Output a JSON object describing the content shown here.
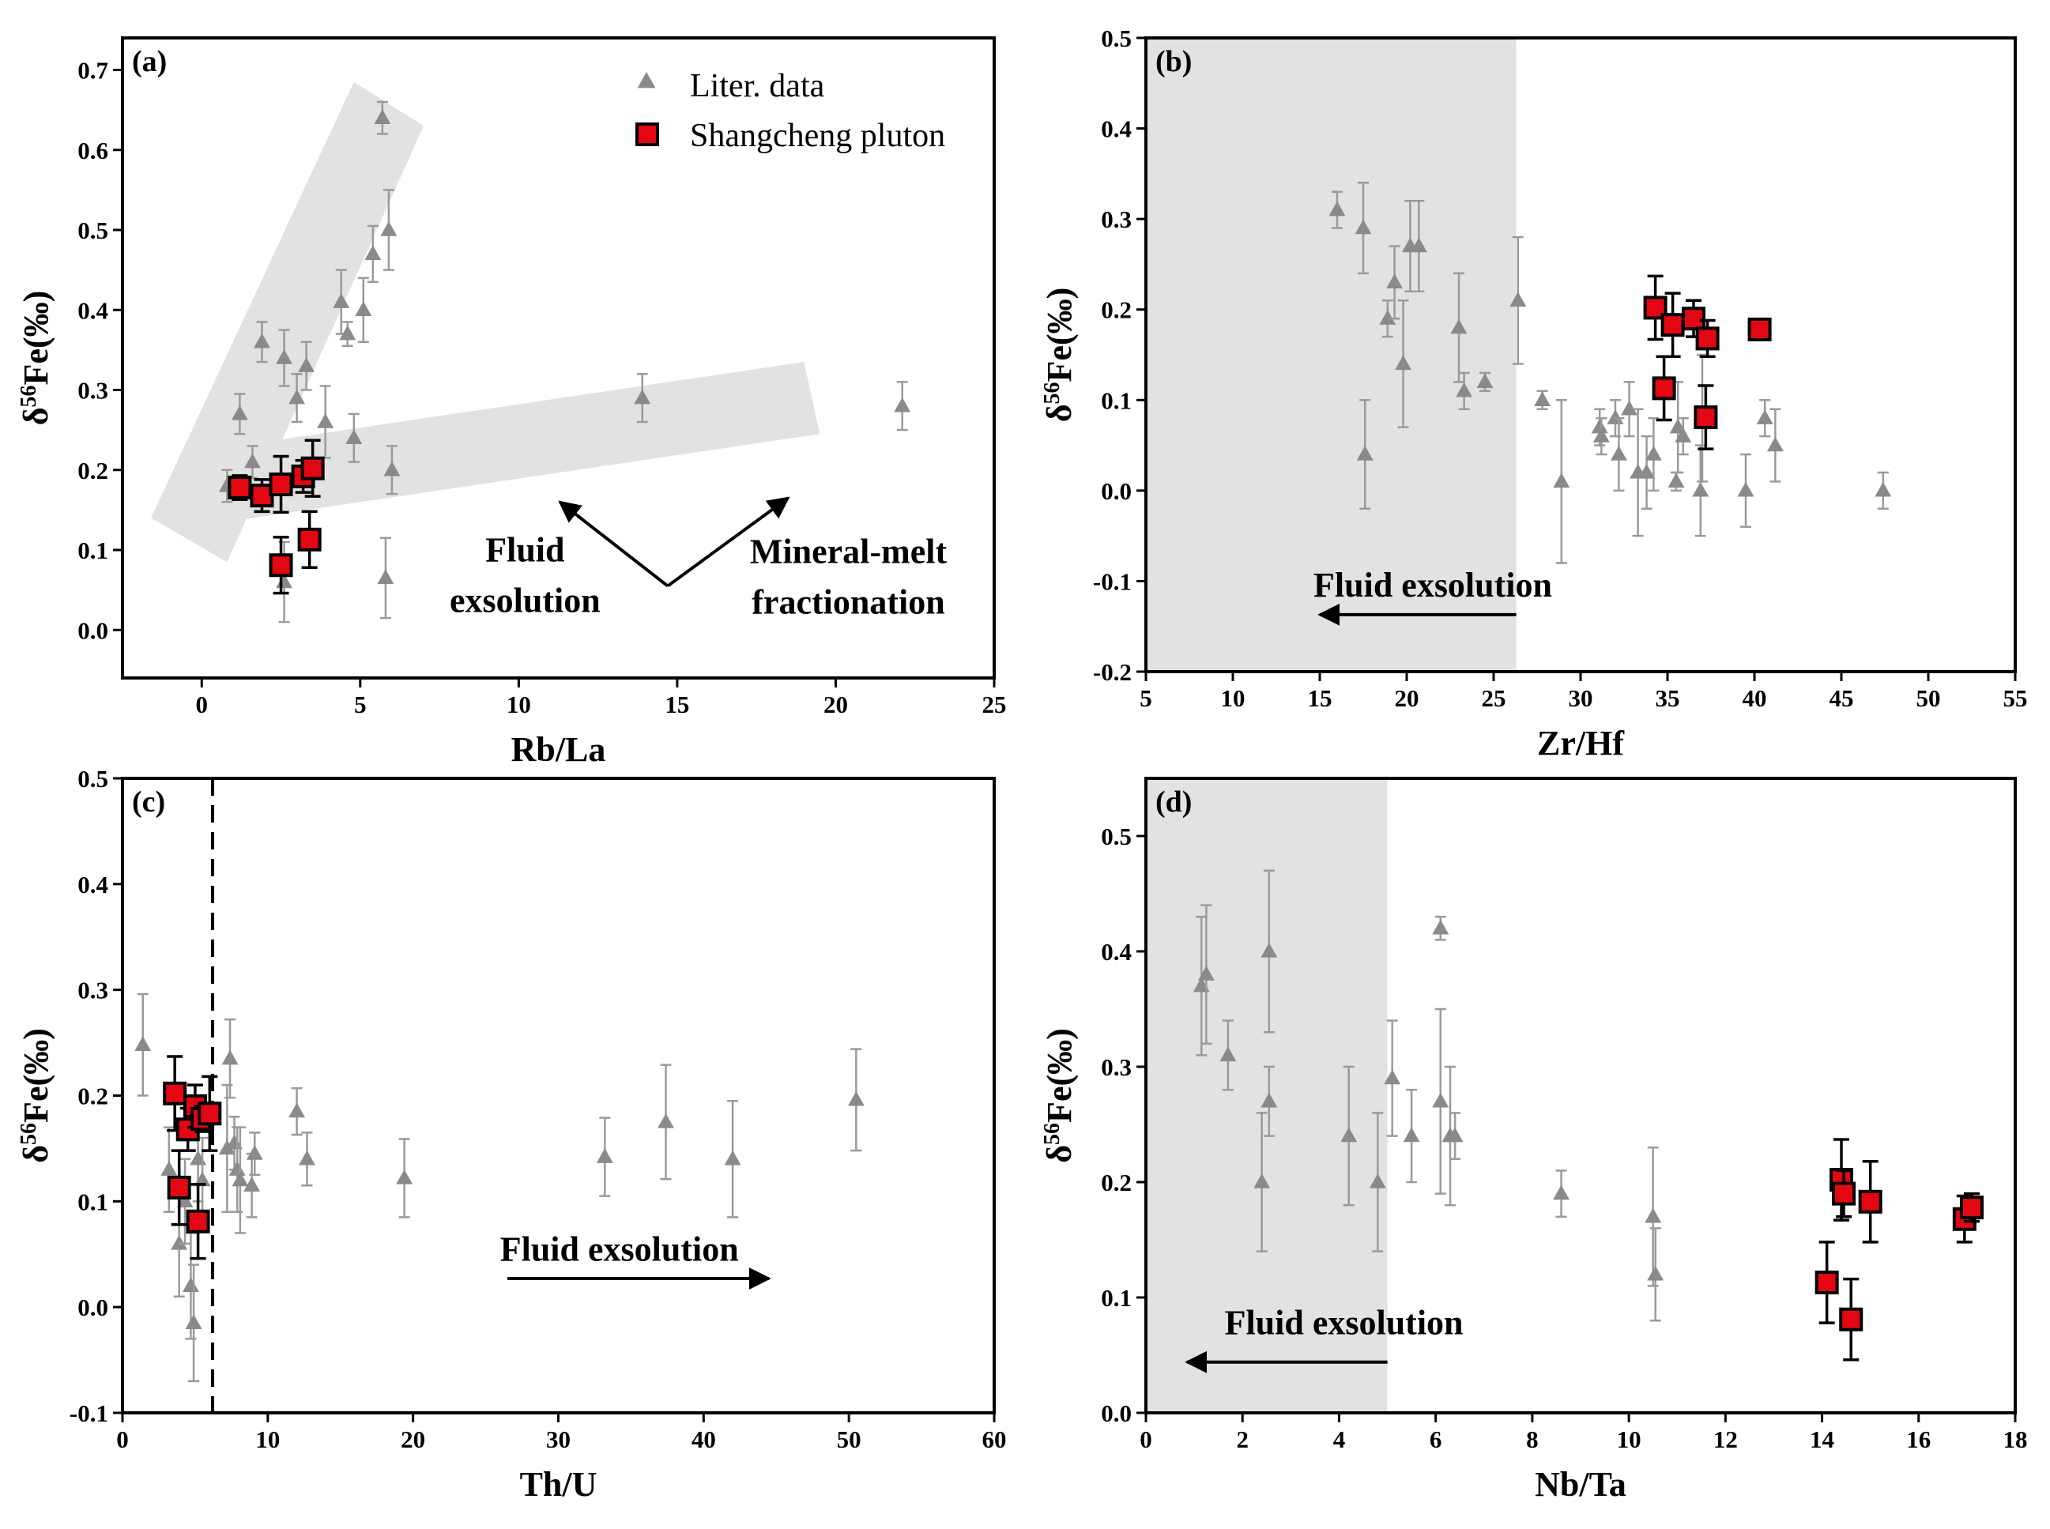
{
  "colors": {
    "literature": "#8a8a8a",
    "literature_error": "#9a9a9a",
    "shangcheng_fill": "#e30613",
    "shangcheng_edge": "#000000",
    "shade": "#e2e2e2"
  },
  "legend": {
    "literature_label": "Liter. data",
    "shangcheng_label": "Shangcheng pluton"
  },
  "chart_data": [
    {
      "panel": "(a)",
      "type": "scatter",
      "xlabel": "Rb/La",
      "ylabel": "δ56Fe(‰)",
      "xlim": [
        -2.5,
        25
      ],
      "ylim": [
        -0.06,
        0.74
      ],
      "xticks": [
        0,
        5,
        10,
        15,
        20,
        25
      ],
      "yticks": [
        0.0,
        0.1,
        0.2,
        0.3,
        0.4,
        0.5,
        0.6,
        0.7
      ],
      "legend_position": "top-right",
      "bands": [
        {
          "polygon": [
            [
              -1.6,
              0.14
            ],
            [
              4.8,
              0.685
            ],
            [
              7.0,
              0.63
            ],
            [
              0.8,
              0.085
            ]
          ]
        },
        {
          "polygon": [
            [
              -0.6,
              0.22
            ],
            [
              19.0,
              0.335
            ],
            [
              19.5,
              0.245
            ],
            [
              -0.1,
              0.13
            ]
          ]
        }
      ],
      "annotations": [
        {
          "lines": [
            "Fluid",
            "exsolution"
          ],
          "x": 10.2,
          "y": 0.054
        },
        {
          "lines": [
            "Mineral-melt",
            "fractionation"
          ],
          "x": 20.4,
          "y": 0.052
        }
      ],
      "arrows": [
        {
          "from": [
            14.7,
            0.055
          ],
          "to": [
            11.3,
            0.16
          ]
        },
        {
          "from": [
            14.7,
            0.055
          ],
          "to": [
            18.5,
            0.165
          ]
        }
      ],
      "series": [
        {
          "name": "Liter. data",
          "marker": "triangle",
          "points": [
            {
              "x": 0.8,
              "y": 0.18,
              "err": 0.02
            },
            {
              "x": 1.2,
              "y": 0.27,
              "err": 0.025
            },
            {
              "x": 1.6,
              "y": 0.21,
              "err": 0.02
            },
            {
              "x": 1.9,
              "y": 0.36,
              "err": 0.025
            },
            {
              "x": 2.6,
              "y": 0.34,
              "err": 0.035
            },
            {
              "x": 3.0,
              "y": 0.29,
              "err": 0.03
            },
            {
              "x": 3.3,
              "y": 0.33,
              "err": 0.03
            },
            {
              "x": 3.9,
              "y": 0.26,
              "err": 0.045
            },
            {
              "x": 4.4,
              "y": 0.41,
              "err": 0.04
            },
            {
              "x": 4.8,
              "y": 0.24,
              "err": 0.03
            },
            {
              "x": 4.6,
              "y": 0.37,
              "err": 0.015
            },
            {
              "x": 5.1,
              "y": 0.4,
              "err": 0.04
            },
            {
              "x": 5.4,
              "y": 0.47,
              "err": 0.035
            },
            {
              "x": 5.7,
              "y": 0.64,
              "err": 0.02
            },
            {
              "x": 5.9,
              "y": 0.5,
              "err": 0.05
            },
            {
              "x": 6.0,
              "y": 0.2,
              "err": 0.03
            },
            {
              "x": 5.8,
              "y": 0.065,
              "err": 0.05
            },
            {
              "x": 2.6,
              "y": 0.06,
              "err": 0.05
            },
            {
              "x": 13.9,
              "y": 0.29,
              "err": 0.03
            },
            {
              "x": 22.1,
              "y": 0.28,
              "err": 0.03
            }
          ]
        },
        {
          "name": "Shangcheng pluton",
          "marker": "square",
          "points": [
            {
              "x": 1.2,
              "y": 0.178,
              "err": 0.015
            },
            {
              "x": 1.9,
              "y": 0.168,
              "err": 0.02
            },
            {
              "x": 2.5,
              "y": 0.182,
              "err": 0.035
            },
            {
              "x": 3.2,
              "y": 0.192,
              "err": 0.02
            },
            {
              "x": 3.5,
              "y": 0.202,
              "err": 0.035
            },
            {
              "x": 3.4,
              "y": 0.113,
              "err": 0.035
            },
            {
              "x": 2.5,
              "y": 0.081,
              "err": 0.035
            }
          ]
        }
      ]
    },
    {
      "panel": "(b)",
      "type": "scatter",
      "xlabel": "Zr/Hf",
      "ylabel": "δ56Fe(‰)",
      "xlim": [
        5,
        55
      ],
      "ylim": [
        -0.2,
        0.5
      ],
      "xticks": [
        5,
        10,
        15,
        20,
        25,
        30,
        35,
        40,
        45,
        50,
        55
      ],
      "yticks": [
        -0.2,
        -0.1,
        0.0,
        0.1,
        0.2,
        0.3,
        0.4,
        0.5
      ],
      "shaded_x_range": [
        5,
        26.3
      ],
      "annotations": [
        {
          "lines": [
            "Fluid exsolution"
          ],
          "x": 21.5,
          "y": -0.117
        }
      ],
      "arrows": [
        {
          "from": [
            26.3,
            -0.137
          ],
          "to": [
            15.0,
            -0.137
          ]
        }
      ],
      "series": [
        {
          "name": "Liter. data",
          "marker": "triangle",
          "points": [
            {
              "x": 16.0,
              "y": 0.31,
              "err": 0.02
            },
            {
              "x": 17.5,
              "y": 0.29,
              "err": 0.05
            },
            {
              "x": 17.6,
              "y": 0.04,
              "err": 0.06
            },
            {
              "x": 18.9,
              "y": 0.19,
              "err": 0.02
            },
            {
              "x": 19.3,
              "y": 0.23,
              "err": 0.04
            },
            {
              "x": 19.8,
              "y": 0.14,
              "err": 0.07
            },
            {
              "x": 20.2,
              "y": 0.27,
              "err": 0.05
            },
            {
              "x": 20.7,
              "y": 0.27,
              "err": 0.05
            },
            {
              "x": 23.0,
              "y": 0.18,
              "err": 0.06
            },
            {
              "x": 23.3,
              "y": 0.11,
              "err": 0.02
            },
            {
              "x": 24.5,
              "y": 0.12,
              "err": 0.01
            },
            {
              "x": 26.4,
              "y": 0.21,
              "err": 0.07
            },
            {
              "x": 27.8,
              "y": 0.1,
              "err": 0.01
            },
            {
              "x": 28.9,
              "y": 0.01,
              "err": 0.09
            },
            {
              "x": 31.1,
              "y": 0.07,
              "err": 0.02
            },
            {
              "x": 31.2,
              "y": 0.06,
              "err": 0.02
            },
            {
              "x": 32.0,
              "y": 0.08,
              "err": 0.02
            },
            {
              "x": 32.2,
              "y": 0.04,
              "err": 0.04
            },
            {
              "x": 32.8,
              "y": 0.09,
              "err": 0.03
            },
            {
              "x": 33.3,
              "y": 0.02,
              "err": 0.07
            },
            {
              "x": 33.8,
              "y": 0.02,
              "err": 0.04
            },
            {
              "x": 34.2,
              "y": 0.04,
              "err": 0.04
            },
            {
              "x": 35.5,
              "y": 0.01,
              "err": 0.01
            },
            {
              "x": 35.6,
              "y": 0.07,
              "err": 0.05
            },
            {
              "x": 35.9,
              "y": 0.06,
              "err": 0.02
            },
            {
              "x": 36.9,
              "y": 0.0,
              "err": 0.05
            },
            {
              "x": 37.0,
              "y": 0.08,
              "err": 0.07
            },
            {
              "x": 39.5,
              "y": 0.0,
              "err": 0.04
            },
            {
              "x": 40.6,
              "y": 0.08,
              "err": 0.02
            },
            {
              "x": 41.2,
              "y": 0.05,
              "err": 0.04
            },
            {
              "x": 47.4,
              "y": 0.0,
              "err": 0.02
            }
          ]
        },
        {
          "name": "Shangcheng pluton",
          "marker": "square",
          "points": [
            {
              "x": 34.3,
              "y": 0.202,
              "err": 0.035
            },
            {
              "x": 35.3,
              "y": 0.183,
              "err": 0.035
            },
            {
              "x": 36.5,
              "y": 0.19,
              "err": 0.02
            },
            {
              "x": 37.3,
              "y": 0.168,
              "err": 0.02
            },
            {
              "x": 40.3,
              "y": 0.178,
              "err": 0.01
            },
            {
              "x": 34.8,
              "y": 0.113,
              "err": 0.035
            },
            {
              "x": 37.2,
              "y": 0.081,
              "err": 0.035
            }
          ]
        }
      ]
    },
    {
      "panel": "(c)",
      "type": "scatter",
      "xlabel": "Th/U",
      "ylabel": "δ56Fe(‰)",
      "xlim": [
        0,
        60
      ],
      "ylim": [
        -0.1,
        0.5
      ],
      "xticks": [
        0,
        10,
        20,
        30,
        40,
        50,
        60
      ],
      "yticks": [
        -0.1,
        0.0,
        0.1,
        0.2,
        0.3,
        0.4,
        0.5
      ],
      "dashed_vline_x": 6.2,
      "annotations": [
        {
          "lines": [
            "Fluid exsolution"
          ],
          "x": 34.2,
          "y": 0.044
        }
      ],
      "arrows": [
        {
          "from": [
            26.5,
            0.027
          ],
          "to": [
            44.5,
            0.027
          ]
        }
      ],
      "series": [
        {
          "name": "Liter. data",
          "marker": "triangle",
          "points": [
            {
              "x": 1.4,
              "y": 0.248,
              "err": 0.048
            },
            {
              "x": 3.2,
              "y": 0.13,
              "err": 0.04
            },
            {
              "x": 3.9,
              "y": 0.06,
              "err": 0.05
            },
            {
              "x": 4.3,
              "y": 0.1,
              "err": 0.04
            },
            {
              "x": 4.7,
              "y": 0.02,
              "err": 0.05
            },
            {
              "x": 4.9,
              "y": -0.015,
              "err": 0.055
            },
            {
              "x": 5.2,
              "y": 0.14,
              "err": 0.04
            },
            {
              "x": 5.5,
              "y": 0.12,
              "err": 0.04
            },
            {
              "x": 7.2,
              "y": 0.15,
              "err": 0.06
            },
            {
              "x": 7.4,
              "y": 0.235,
              "err": 0.037
            },
            {
              "x": 7.7,
              "y": 0.155,
              "err": 0.025
            },
            {
              "x": 7.9,
              "y": 0.13,
              "err": 0.04
            },
            {
              "x": 8.1,
              "y": 0.12,
              "err": 0.05
            },
            {
              "x": 8.9,
              "y": 0.115,
              "err": 0.03
            },
            {
              "x": 9.1,
              "y": 0.145,
              "err": 0.02
            },
            {
              "x": 12.0,
              "y": 0.185,
              "err": 0.022
            },
            {
              "x": 12.7,
              "y": 0.14,
              "err": 0.025
            },
            {
              "x": 19.4,
              "y": 0.122,
              "err": 0.037
            },
            {
              "x": 33.2,
              "y": 0.142,
              "err": 0.037
            },
            {
              "x": 37.4,
              "y": 0.175,
              "err": 0.054
            },
            {
              "x": 42.0,
              "y": 0.14,
              "err": 0.055
            },
            {
              "x": 50.5,
              "y": 0.196,
              "err": 0.048
            }
          ]
        },
        {
          "name": "Shangcheng pluton",
          "marker": "square",
          "points": [
            {
              "x": 3.6,
              "y": 0.202,
              "err": 0.035
            },
            {
              "x": 4.5,
              "y": 0.168,
              "err": 0.02
            },
            {
              "x": 5.0,
              "y": 0.19,
              "err": 0.02
            },
            {
              "x": 5.5,
              "y": 0.178,
              "err": 0.012
            },
            {
              "x": 6.0,
              "y": 0.183,
              "err": 0.035
            },
            {
              "x": 3.9,
              "y": 0.113,
              "err": 0.035
            },
            {
              "x": 5.2,
              "y": 0.081,
              "err": 0.035
            }
          ]
        }
      ]
    },
    {
      "panel": "(d)",
      "type": "scatter",
      "xlabel": "Nb/Ta",
      "ylabel": "δ56Fe(‰)",
      "xlim": [
        0,
        18
      ],
      "ylim": [
        0.0,
        0.55
      ],
      "xticks": [
        0,
        2,
        4,
        6,
        8,
        10,
        12,
        14,
        16,
        18
      ],
      "yticks": [
        0.0,
        0.1,
        0.2,
        0.3,
        0.4,
        0.5
      ],
      "shaded_x_range": [
        0,
        5
      ],
      "annotations": [
        {
          "lines": [
            "Fluid exsolution"
          ],
          "x": 4.1,
          "y": 0.068
        }
      ],
      "arrows": [
        {
          "from": [
            5.0,
            0.044
          ],
          "to": [
            0.85,
            0.044
          ]
        }
      ],
      "series": [
        {
          "name": "Liter. data",
          "marker": "triangle",
          "points": [
            {
              "x": 1.15,
              "y": 0.37,
              "err": 0.06
            },
            {
              "x": 1.25,
              "y": 0.38,
              "err": 0.06
            },
            {
              "x": 1.7,
              "y": 0.31,
              "err": 0.03
            },
            {
              "x": 2.4,
              "y": 0.2,
              "err": 0.06
            },
            {
              "x": 2.55,
              "y": 0.27,
              "err": 0.03
            },
            {
              "x": 2.55,
              "y": 0.4,
              "err": 0.07
            },
            {
              "x": 4.2,
              "y": 0.24,
              "err": 0.06
            },
            {
              "x": 4.8,
              "y": 0.2,
              "err": 0.06
            },
            {
              "x": 5.1,
              "y": 0.29,
              "err": 0.05
            },
            {
              "x": 5.5,
              "y": 0.24,
              "err": 0.04
            },
            {
              "x": 6.1,
              "y": 0.27,
              "err": 0.08
            },
            {
              "x": 6.1,
              "y": 0.42,
              "err": 0.01
            },
            {
              "x": 6.3,
              "y": 0.24,
              "err": 0.06
            },
            {
              "x": 6.4,
              "y": 0.24,
              "err": 0.02
            },
            {
              "x": 8.6,
              "y": 0.19,
              "err": 0.02
            },
            {
              "x": 10.5,
              "y": 0.17,
              "err": 0.06
            },
            {
              "x": 10.55,
              "y": 0.12,
              "err": 0.04
            }
          ]
        },
        {
          "name": "Shangcheng pluton",
          "marker": "square",
          "points": [
            {
              "x": 14.1,
              "y": 0.113,
              "err": 0.035
            },
            {
              "x": 14.4,
              "y": 0.202,
              "err": 0.035
            },
            {
              "x": 14.45,
              "y": 0.19,
              "err": 0.02
            },
            {
              "x": 14.6,
              "y": 0.081,
              "err": 0.035
            },
            {
              "x": 15.0,
              "y": 0.183,
              "err": 0.035
            },
            {
              "x": 16.95,
              "y": 0.168,
              "err": 0.02
            },
            {
              "x": 17.1,
              "y": 0.178,
              "err": 0.012
            }
          ]
        }
      ]
    }
  ]
}
